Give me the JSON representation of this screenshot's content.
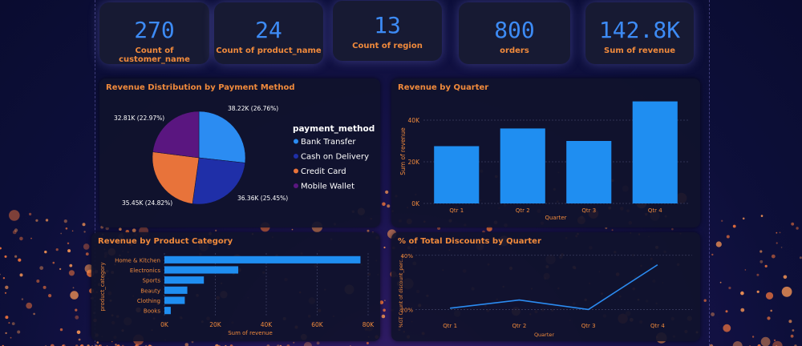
{
  "kpis": [
    {
      "value": "270",
      "label": "Count of customer_name"
    },
    {
      "value": "24",
      "label": "Count of product_name"
    },
    {
      "value": "13",
      "label": "Count of region"
    },
    {
      "value": "800",
      "label": "orders"
    },
    {
      "value": "142.8K",
      "label": "Sum of revenue"
    }
  ],
  "colors": {
    "accent": "#3d8bf5",
    "title": "#f08a3c",
    "pie": [
      "#2b8cf2",
      "#1f2fa8",
      "#e8733a",
      "#5a1680"
    ]
  },
  "chart_data": [
    {
      "type": "pie",
      "title": "Revenue Distribution by Payment Method",
      "legend_title": "payment_method",
      "legend_position": "right",
      "slices": [
        {
          "name": "Bank Transfer",
          "value": 38.22,
          "label": "38.22K (26.76%)"
        },
        {
          "name": "Cash on Delivery",
          "value": 36.36,
          "label": "36.36K (25.45%)"
        },
        {
          "name": "Credit Card",
          "value": 35.45,
          "label": "35.45K (24.82%)"
        },
        {
          "name": "Mobile Wallet",
          "value": 32.81,
          "label": "32.81K (22.97%)"
        }
      ]
    },
    {
      "type": "bar",
      "title": "Revenue by Quarter",
      "categories": [
        "Qtr 1",
        "Qtr 2",
        "Qtr 3",
        "Qtr 4"
      ],
      "values": [
        27500,
        36000,
        30000,
        49000
      ],
      "xlabel": "Quarter",
      "ylabel": "Sum of revenue",
      "yticks": [
        "0K",
        "20K",
        "40K"
      ],
      "ytick_values": [
        0,
        20000,
        40000
      ],
      "ylim": [
        0,
        50000
      ],
      "grid": true
    },
    {
      "type": "bar",
      "orientation": "horizontal",
      "title": "Revenue by Product Category",
      "categories": [
        "Home & Kitchen",
        "Electronics",
        "Sports",
        "Beauty",
        "Clothing",
        "Books"
      ],
      "values": [
        77000,
        29000,
        15500,
        9000,
        8000,
        2500
      ],
      "xlabel": "Sum of revenue",
      "ylabel": "product_category",
      "xticks": [
        "0K",
        "20K",
        "40K",
        "60K",
        "80K"
      ],
      "xtick_values": [
        0,
        20000,
        40000,
        60000,
        80000
      ],
      "xlim": [
        0,
        80000
      ],
      "grid": true
    },
    {
      "type": "line",
      "title": "% of Total Discounts by Quarter",
      "categories": [
        "Qtr 1",
        "Qtr 2",
        "Qtr 3",
        "Qtr 4"
      ],
      "values": [
        20.5,
        23.5,
        20.0,
        36.5
      ],
      "xlabel": "Quarter",
      "ylabel": "%GT Count of discount_perc...",
      "yticks": [
        "20%",
        "40%"
      ],
      "ytick_values": [
        20,
        40
      ],
      "ylim": [
        16,
        42
      ],
      "grid": true
    }
  ]
}
